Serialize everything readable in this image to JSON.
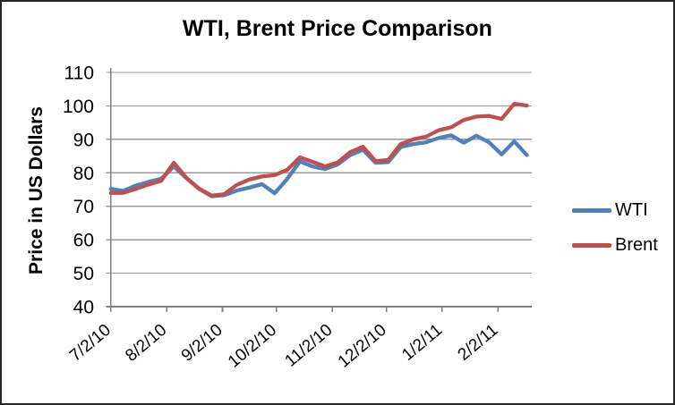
{
  "chart_data": {
    "type": "line",
    "title": "WTI, Brent Price Comparison",
    "ylabel": "Price in US Dollars",
    "xlabel": "",
    "ylim": [
      40,
      110
    ],
    "y_ticks": [
      40,
      50,
      60,
      70,
      80,
      90,
      100,
      110
    ],
    "grid": true,
    "legend_position": "right",
    "x_unit": "weekly spot price dates, one point per week starting 7/2/10",
    "x_step_days": 7,
    "x_ticks": [
      {
        "label": "7/2/10",
        "day": 0
      },
      {
        "label": "8/2/10",
        "day": 31
      },
      {
        "label": "9/2/10",
        "day": 62
      },
      {
        "label": "10/2/10",
        "day": 92
      },
      {
        "label": "11/2/10",
        "day": 123
      },
      {
        "label": "12/2/10",
        "day": 153
      },
      {
        "label": "1/2/11",
        "day": 184
      },
      {
        "label": "2/2/11",
        "day": 215
      }
    ],
    "series": [
      {
        "name": "WTI",
        "color": "#4F81BD",
        "values": [
          75.2,
          74.6,
          76.2,
          77.3,
          78.2,
          81.9,
          78.4,
          75.2,
          73.0,
          73.3,
          74.7,
          75.6,
          76.6,
          73.9,
          78.2,
          83.4,
          81.9,
          81.1,
          82.5,
          85.3,
          86.9,
          83.0,
          83.2,
          87.7,
          88.6,
          89.1,
          90.4,
          91.2,
          89.0,
          91.1,
          89.1,
          85.5,
          89.4,
          85.3
        ]
      },
      {
        "name": "Brent",
        "color": "#C0504D",
        "values": [
          74.0,
          74.0,
          75.2,
          76.5,
          77.6,
          83.0,
          78.5,
          75.3,
          73.2,
          73.6,
          76.4,
          78.0,
          78.9,
          79.3,
          80.9,
          84.6,
          83.3,
          81.9,
          83.1,
          86.2,
          87.8,
          83.5,
          83.8,
          88.6,
          90.0,
          90.8,
          92.7,
          93.6,
          95.8,
          96.8,
          97.0,
          96.1,
          100.6,
          100.1
        ]
      }
    ],
    "colors": {
      "background": "#FFFFFF",
      "frame_border": "#262626",
      "grid": "#999999",
      "axis": "#808080",
      "text": "#000000"
    }
  }
}
